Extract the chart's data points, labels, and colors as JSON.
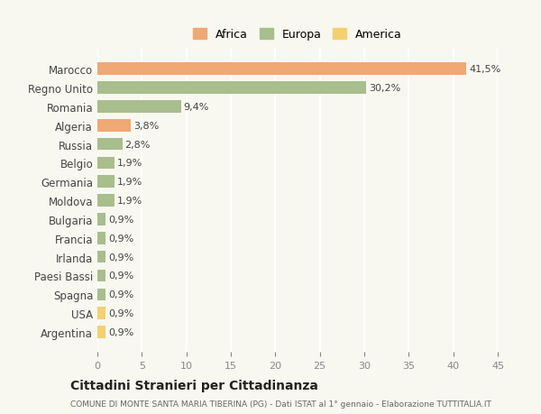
{
  "categories": [
    "Marocco",
    "Regno Unito",
    "Romania",
    "Algeria",
    "Russia",
    "Belgio",
    "Germania",
    "Moldova",
    "Bulgaria",
    "Francia",
    "Irlanda",
    "Paesi Bassi",
    "Spagna",
    "USA",
    "Argentina"
  ],
  "values": [
    41.5,
    30.2,
    9.4,
    3.8,
    2.8,
    1.9,
    1.9,
    1.9,
    0.9,
    0.9,
    0.9,
    0.9,
    0.9,
    0.9,
    0.9
  ],
  "labels": [
    "41,5%",
    "30,2%",
    "9,4%",
    "3,8%",
    "2,8%",
    "1,9%",
    "1,9%",
    "1,9%",
    "0,9%",
    "0,9%",
    "0,9%",
    "0,9%",
    "0,9%",
    "0,9%",
    "0,9%"
  ],
  "continents": [
    "Africa",
    "Europa",
    "Europa",
    "Africa",
    "Europa",
    "Europa",
    "Europa",
    "Europa",
    "Europa",
    "Europa",
    "Europa",
    "Europa",
    "Europa",
    "America",
    "America"
  ],
  "colors": {
    "Africa": "#F0A875",
    "Europa": "#A8BE8C",
    "America": "#F5D070"
  },
  "legend": [
    "Africa",
    "Europa",
    "America"
  ],
  "legend_colors": [
    "#F0A875",
    "#A8BE8C",
    "#F5D070"
  ],
  "xlim": [
    0,
    45
  ],
  "xticks": [
    0,
    5,
    10,
    15,
    20,
    25,
    30,
    35,
    40,
    45
  ],
  "title": "Cittadini Stranieri per Cittadinanza",
  "subtitle": "COMUNE DI MONTE SANTA MARIA TIBERINA (PG) - Dati ISTAT al 1° gennaio - Elaborazione TUTTITALIA.IT",
  "background_color": "#F8F8F0",
  "grid_color": "#FFFFFF"
}
